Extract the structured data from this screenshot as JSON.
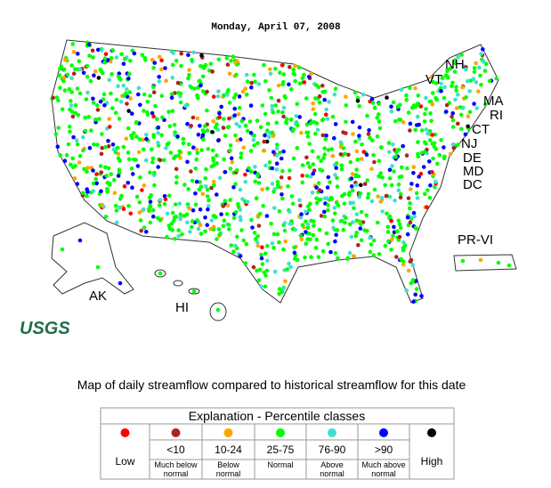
{
  "header": {
    "date": "Monday, April 07, 2008"
  },
  "map": {
    "state_labels": [
      "NH",
      "VT",
      "MA",
      "RI",
      "CT",
      "NJ",
      "DE",
      "MD",
      "DC",
      "AK",
      "HI",
      "PR-VI"
    ],
    "logo": "USGS"
  },
  "caption": "Map of daily streamflow compared to historical streamflow for this date",
  "legend": {
    "title": "Explanation - Percentile classes",
    "columns": [
      {
        "color": "#ff0000",
        "label": "Low"
      },
      {
        "color": "#b22222",
        "label": "<10",
        "note": "Much below normal"
      },
      {
        "color": "#ffa500",
        "label": "10-24",
        "note": "Below normal"
      },
      {
        "color": "#00ff00",
        "label": "25-75",
        "note": "Normal"
      },
      {
        "color": "#40e0d0",
        "label": "76-90",
        "note": "Above normal"
      },
      {
        "color": "#0000ff",
        "label": ">90",
        "note": "Much above normal"
      },
      {
        "color": "#000000",
        "label": "High"
      }
    ]
  }
}
